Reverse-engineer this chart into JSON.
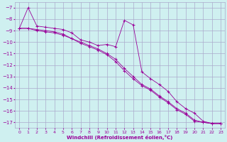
{
  "xlabel": "Windchill (Refroidissement éolien,°C)",
  "background_color": "#cff0f0",
  "grid_color": "#aaaacc",
  "line_color": "#990099",
  "xlim": [
    -0.5,
    23.5
  ],
  "ylim": [
    -17.5,
    -6.5
  ],
  "yticks": [
    -7,
    -8,
    -9,
    -10,
    -11,
    -12,
    -13,
    -14,
    -15,
    -16,
    -17
  ],
  "xticks": [
    0,
    1,
    2,
    3,
    4,
    5,
    6,
    7,
    8,
    9,
    10,
    11,
    12,
    13,
    14,
    15,
    16,
    17,
    18,
    19,
    20,
    21,
    22,
    23
  ],
  "series": [
    {
      "x": [
        0,
        1,
        2,
        3,
        4,
        5,
        6,
        7,
        8,
        9,
        10,
        11,
        12,
        13,
        14,
        15,
        16,
        17,
        18,
        19,
        20,
        21,
        22,
        23
      ],
      "y": [
        -8.8,
        -7.0,
        -8.6,
        -8.7,
        -8.8,
        -8.9,
        -9.2,
        -9.8,
        -10.0,
        -10.3,
        -10.2,
        -10.4,
        -8.1,
        -8.5,
        -12.6,
        -13.2,
        -13.7,
        -14.3,
        -15.2,
        -15.8,
        -16.2,
        -16.9,
        -17.1,
        -17.1
      ]
    },
    {
      "x": [
        0,
        1,
        2,
        3,
        4,
        5,
        6,
        7,
        8,
        9,
        10,
        11,
        12,
        13,
        14,
        15,
        16,
        17,
        18,
        19,
        20,
        21,
        22,
        23
      ],
      "y": [
        -8.8,
        -8.8,
        -8.9,
        -9.0,
        -9.1,
        -9.3,
        -9.7,
        -10.0,
        -10.3,
        -10.6,
        -11.0,
        -11.5,
        -12.3,
        -13.0,
        -13.7,
        -14.1,
        -14.7,
        -15.2,
        -15.8,
        -16.2,
        -16.8,
        -17.0,
        -17.1,
        -17.1
      ]
    },
    {
      "x": [
        0,
        1,
        2,
        3,
        4,
        5,
        6,
        7,
        8,
        9,
        10,
        11,
        12,
        13,
        14,
        15,
        16,
        17,
        18,
        19,
        20,
        21,
        22,
        23
      ],
      "y": [
        -8.8,
        -8.8,
        -9.0,
        -9.1,
        -9.2,
        -9.4,
        -9.7,
        -10.1,
        -10.4,
        -10.7,
        -11.1,
        -11.7,
        -12.5,
        -13.2,
        -13.8,
        -14.2,
        -14.8,
        -15.3,
        -15.9,
        -16.3,
        -16.9,
        -17.0,
        -17.1,
        -17.1
      ]
    }
  ]
}
